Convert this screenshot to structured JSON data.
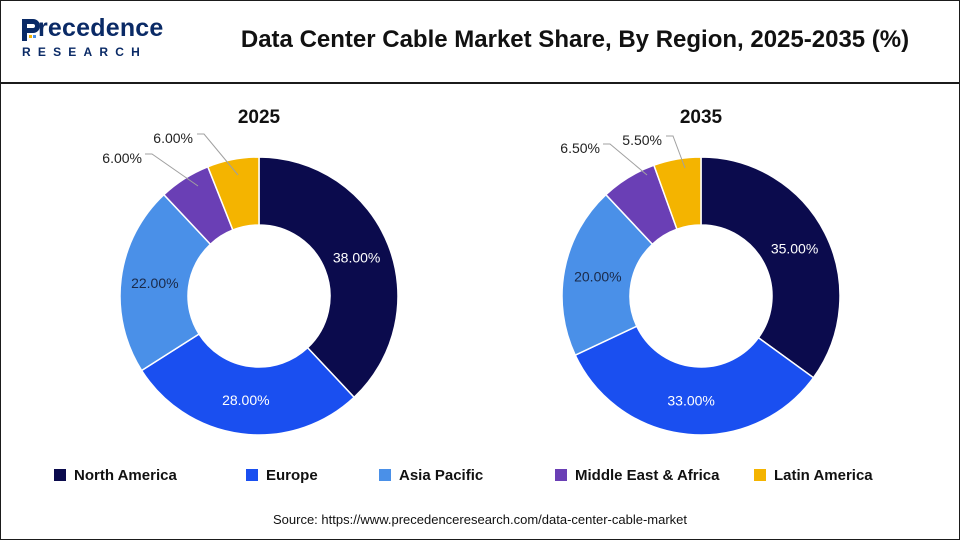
{
  "brand": {
    "name": "recedence",
    "sub": "RESEARCH"
  },
  "title": "Data Center Cable Market Share, By Region, 2025-2035 (%)",
  "chart_data": [
    {
      "type": "pie",
      "title": "2025",
      "categories": [
        "North America",
        "Europe",
        "Asia Pacific",
        "Middle East & Africa",
        "Latin America"
      ],
      "values": [
        38.0,
        28.0,
        22.0,
        6.0,
        6.0
      ],
      "labels": [
        "38.00%",
        "28.00%",
        "22.00%",
        "6.00%",
        "6.00%"
      ],
      "colors": [
        "#0b0b4d",
        "#1a4ff0",
        "#4a90e8",
        "#6a3fb5",
        "#f4b400"
      ],
      "donut": true
    },
    {
      "type": "pie",
      "title": "2035",
      "categories": [
        "North America",
        "Europe",
        "Asia Pacific",
        "Middle East & Africa",
        "Latin America"
      ],
      "values": [
        35.0,
        33.0,
        20.0,
        6.5,
        5.5
      ],
      "labels": [
        "35.00%",
        "33.00%",
        "20.00%",
        "6.50%",
        "5.50%"
      ],
      "colors": [
        "#0b0b4d",
        "#1a4ff0",
        "#4a90e8",
        "#6a3fb5",
        "#f4b400"
      ],
      "donut": true
    }
  ],
  "legend": [
    {
      "label": "North America",
      "color": "#0b0b4d"
    },
    {
      "label": "Europe",
      "color": "#1a4ff0"
    },
    {
      "label": "Asia Pacific",
      "color": "#4a90e8"
    },
    {
      "label": "Middle East & Africa",
      "color": "#6a3fb5"
    },
    {
      "label": "Latin America",
      "color": "#f4b400"
    }
  ],
  "source": "Source: https://www.precedenceresearch.com/data-center-cable-market"
}
